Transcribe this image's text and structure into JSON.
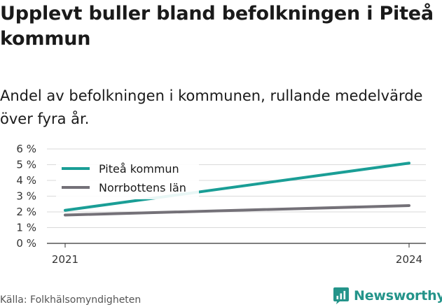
{
  "chart_data": {
    "type": "line",
    "title": "Upplevt buller bland befolkningen i Piteå kommun",
    "subtitle": "Andel av befolkningen i kommunen, rullande medelvärde över fyra år.",
    "x": [
      2021,
      2024
    ],
    "x_tick_labels": [
      "2021",
      "2024"
    ],
    "y_ticks": [
      0,
      1,
      2,
      3,
      4,
      5,
      6
    ],
    "y_tick_labels": [
      "0 %",
      "1 %",
      "2 %",
      "3 %",
      "4 %",
      "5 %",
      "6 %"
    ],
    "ylim": [
      0,
      6
    ],
    "y_unit": "%",
    "grid": true,
    "legend_position": "top-left",
    "series": [
      {
        "name": "Piteå kommun",
        "color": "#1a9e96",
        "values": [
          2.1,
          5.1
        ]
      },
      {
        "name": "Norrbottens län",
        "color": "#747178",
        "values": [
          1.8,
          2.4
        ]
      }
    ],
    "source": "Källa: Folkhälsomyndigheten"
  },
  "brand": {
    "name": "Newsworthy",
    "icon": "newsworthy-logo-icon",
    "color": "#24948a"
  }
}
